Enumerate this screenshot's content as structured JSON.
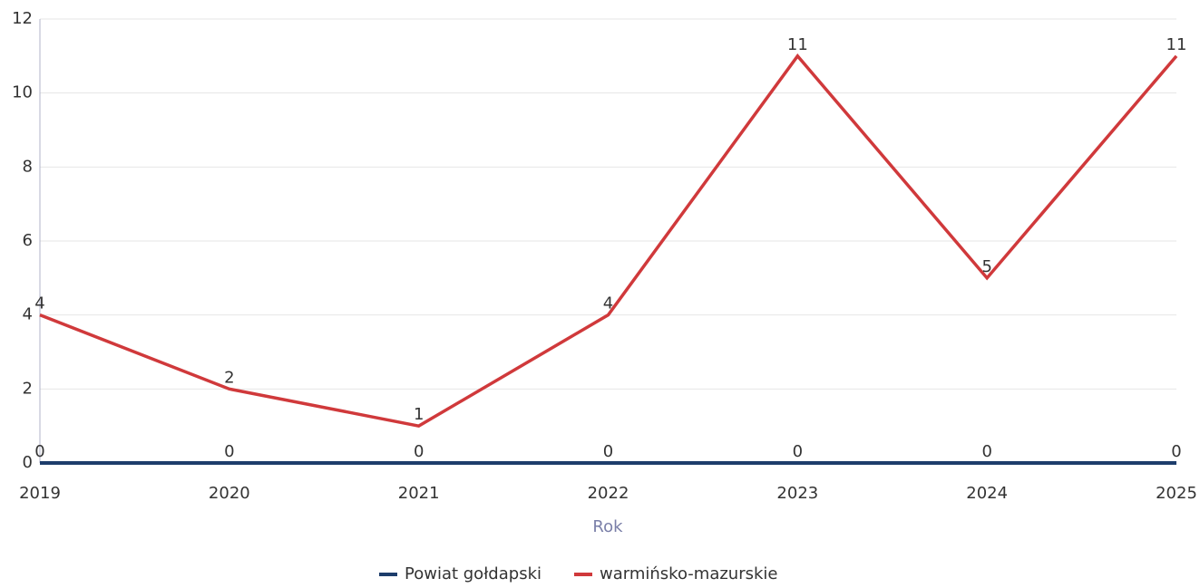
{
  "chart_data": {
    "type": "line",
    "x_label": "Rok",
    "categories": [
      "2019",
      "2020",
      "2021",
      "2022",
      "2023",
      "2024",
      "2025"
    ],
    "series": [
      {
        "name": "Powiat gołdapski",
        "color": "#1d3d6b",
        "values": [
          0,
          0,
          0,
          0,
          0,
          0,
          0
        ]
      },
      {
        "name": "warmińsko-mazurskie",
        "color": "#d0393b",
        "values": [
          4,
          2,
          1,
          4,
          11,
          5,
          11
        ]
      }
    ],
    "ylim": [
      0,
      12
    ],
    "yticks": [
      0,
      2,
      4,
      6,
      8,
      10,
      12
    ],
    "grid": true,
    "legend": "bottom"
  }
}
